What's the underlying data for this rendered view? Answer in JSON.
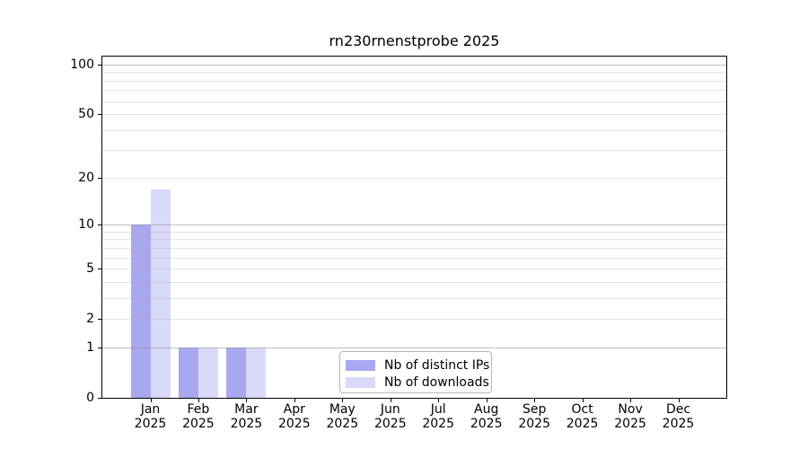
{
  "title": "rn230rnenstprobe 2025",
  "colors": {
    "distinct_ips_bar": "#a8a8f0",
    "downloads_bar": "#d9d9f8",
    "grid_minor": "#ebebeb",
    "grid_major": "#c2c2c2",
    "axis": "#000000",
    "legend_border": "#b7b7b7"
  },
  "legend": {
    "items": [
      {
        "label": "Nb of distinct IPs",
        "color": "#a8a8f0"
      },
      {
        "label": "Nb of downloads",
        "color": "#d9d9f8"
      }
    ]
  },
  "chart_data": {
    "type": "bar",
    "title": "rn230rnenstprobe 2025",
    "categories": [
      "Jan",
      "Feb",
      "Mar",
      "Apr",
      "May",
      "Jun",
      "Jul",
      "Aug",
      "Sep",
      "Oct",
      "Nov",
      "Dec"
    ],
    "year": "2025",
    "series": [
      {
        "name": "Nb of distinct IPs",
        "color": "#a8a8f0",
        "values": [
          10,
          1,
          1,
          0,
          0,
          0,
          0,
          0,
          0,
          0,
          0,
          0
        ]
      },
      {
        "name": "Nb of downloads",
        "color": "#d9d9f8",
        "values": [
          17,
          1,
          1,
          0,
          0,
          0,
          0,
          0,
          0,
          0,
          0,
          0
        ]
      }
    ],
    "xlabel": "",
    "ylabel": "",
    "y_axis": {
      "scale": "log10(1+v)",
      "tick_labels": [
        "100",
        "50",
        "20",
        "10",
        "5",
        "2",
        "1",
        "0"
      ],
      "tick_values": [
        100,
        50,
        20,
        10,
        5,
        2,
        1,
        0
      ],
      "top_value": 112
    },
    "grid": {
      "on": true,
      "minor_values": [
        2,
        3,
        4,
        5,
        6,
        7,
        8,
        9,
        20,
        30,
        40,
        50,
        60,
        70,
        80,
        90
      ],
      "major_values": [
        1,
        10,
        100
      ]
    },
    "legend_position": "lower center"
  }
}
